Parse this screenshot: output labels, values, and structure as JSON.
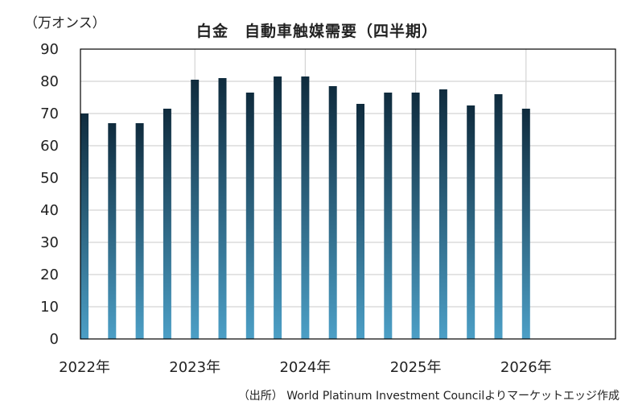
{
  "chart_data": {
    "type": "bar",
    "title": "白金　自動車触媒需要（四半期）",
    "ylabel": "（万オンス）",
    "ylim": [
      0,
      90
    ],
    "yticks": [
      0,
      10,
      20,
      30,
      40,
      50,
      60,
      70,
      80,
      90
    ],
    "xticks": [
      "2022年",
      "2023年",
      "2024年",
      "2025年",
      "2026年"
    ],
    "grid": true,
    "categories": [
      "2022Q1",
      "2022Q2",
      "2022Q3",
      "2022Q4",
      "2023Q1",
      "2023Q2",
      "2023Q3",
      "2023Q4",
      "2024Q1",
      "2024Q2",
      "2024Q3",
      "2024Q4",
      "2025Q1",
      "2025Q2",
      "2025Q3",
      "2025Q4",
      "2026Q1"
    ],
    "values": [
      70,
      67,
      67,
      71.5,
      80.5,
      81,
      76.5,
      81.5,
      81.5,
      78.5,
      73,
      76.5,
      76.5,
      77.5,
      72.5,
      76,
      71.5
    ],
    "colors": {
      "bar_top": "#0f2b3d",
      "bar_bottom": "#4c9fc6",
      "grid": "#d4d4d4",
      "axis": "#000000"
    },
    "source": "（出所） World Platinum Investment Councilよりマーケットエッジ作成"
  }
}
